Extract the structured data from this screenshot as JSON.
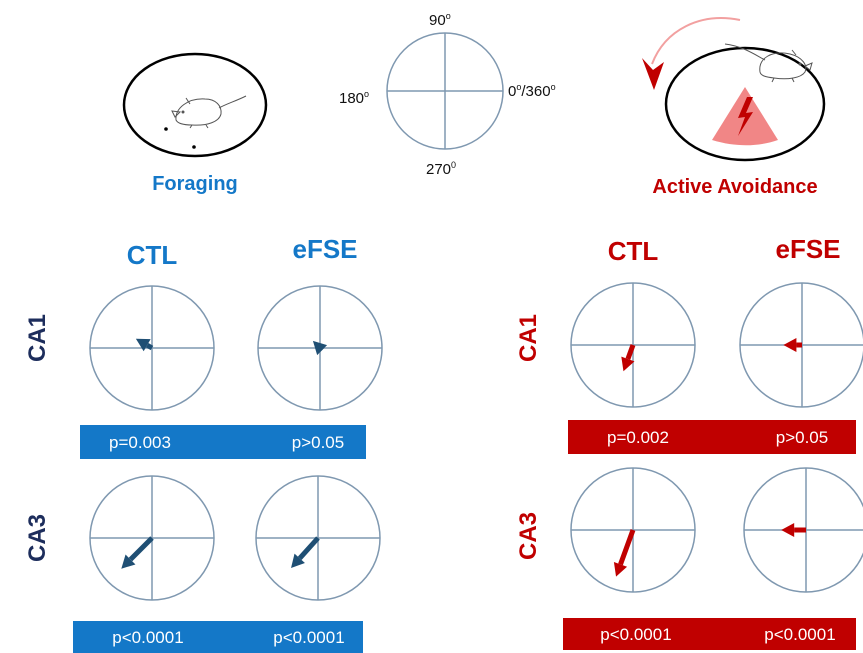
{
  "compass": {
    "top": "90",
    "top_sup": "o",
    "left": "180",
    "left_sup": "o",
    "right": "0",
    "right_sup": "o",
    "right_suffix": "/360",
    "right_sup2": "o",
    "bottom": "270",
    "bottom_sup": "0"
  },
  "tasks": {
    "foraging": "Foraging",
    "avoidance": "Active Avoidance"
  },
  "groups": {
    "ctl": "CTL",
    "efse": "eFSE"
  },
  "regions": {
    "ca1": "CA1",
    "ca3": "CA3"
  },
  "colors": {
    "foraging": "#1478c8",
    "navy": "#1d2d5c",
    "arrow_foraging": "#1f4f74",
    "avoidance": "#c00000",
    "circle": "#7f98b0",
    "shock_zone": "#f08080"
  },
  "stats": {
    "foraging_ca1": [
      "p=0.003",
      "p>0.05"
    ],
    "foraging_ca3": [
      "p<0.0001",
      "p<0.0001"
    ],
    "avoidance_ca1": [
      "p=0.002",
      "p>0.05"
    ],
    "avoidance_ca3": [
      "p<0.0001",
      "p<0.0001"
    ]
  },
  "vectors": [
    {
      "task": "foraging",
      "region": "CA1",
      "group": "CTL",
      "angle_deg": 150,
      "length": 0.3
    },
    {
      "task": "foraging",
      "region": "CA1",
      "group": "eFSE",
      "angle_deg": 135,
      "length": 0.15
    },
    {
      "task": "foraging",
      "region": "CA3",
      "group": "CTL",
      "angle_deg": 225,
      "length": 0.7
    },
    {
      "task": "foraging",
      "region": "CA3",
      "group": "eFSE",
      "angle_deg": 228,
      "length": 0.65
    },
    {
      "task": "avoidance",
      "region": "CA1",
      "group": "CTL",
      "angle_deg": 250,
      "length": 0.45
    },
    {
      "task": "avoidance",
      "region": "CA1",
      "group": "eFSE",
      "angle_deg": 180,
      "length": 0.3
    },
    {
      "task": "avoidance",
      "region": "CA3",
      "group": "CTL",
      "angle_deg": 250,
      "length": 0.8
    },
    {
      "task": "avoidance",
      "region": "CA3",
      "group": "eFSE",
      "angle_deg": 180,
      "length": 0.4
    }
  ]
}
